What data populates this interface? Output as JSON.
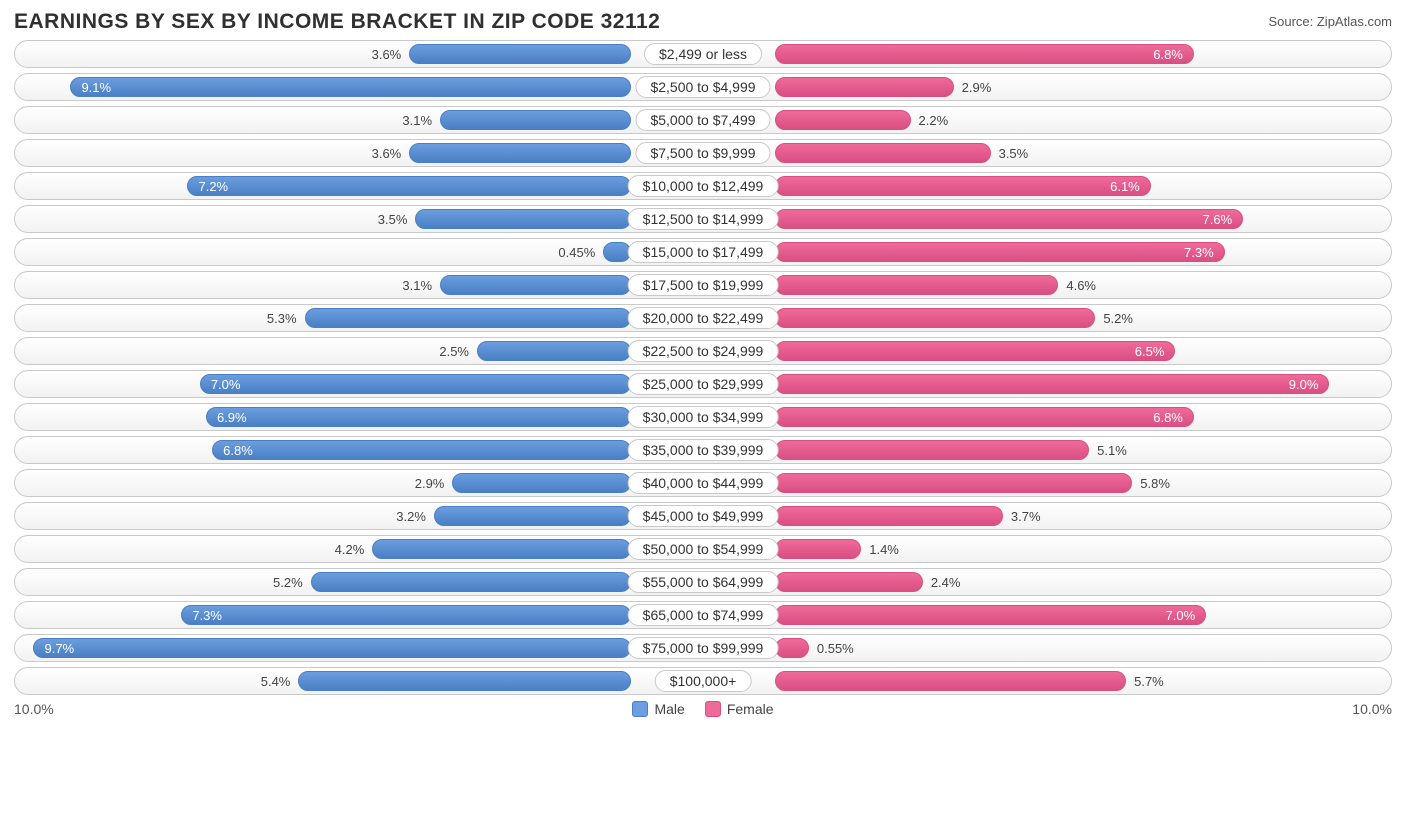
{
  "title": "EARNINGS BY SEX BY INCOME BRACKET IN ZIP CODE 32112",
  "source": "Source: ZipAtlas.com",
  "axis_max": 10.0,
  "axis_label_left": "10.0%",
  "axis_label_right": "10.0%",
  "colors": {
    "male_fill": "#6a9ede",
    "male_border": "#4a7fc5",
    "female_fill": "#ef6a99",
    "female_border": "#d94f82",
    "row_border": "#c9c9c9",
    "text_inside": "#ffffff",
    "text_outside": "#444444"
  },
  "legend": {
    "male": "Male",
    "female": "Female"
  },
  "label_inside_threshold": 6.0,
  "rows": [
    {
      "category": "$2,499 or less",
      "male": 3.6,
      "female": 6.8
    },
    {
      "category": "$2,500 to $4,999",
      "male": 9.1,
      "female": 2.9
    },
    {
      "category": "$5,000 to $7,499",
      "male": 3.1,
      "female": 2.2
    },
    {
      "category": "$7,500 to $9,999",
      "male": 3.6,
      "female": 3.5
    },
    {
      "category": "$10,000 to $12,499",
      "male": 7.2,
      "female": 6.1
    },
    {
      "category": "$12,500 to $14,999",
      "male": 3.5,
      "female": 7.6
    },
    {
      "category": "$15,000 to $17,499",
      "male": 0.45,
      "female": 7.3
    },
    {
      "category": "$17,500 to $19,999",
      "male": 3.1,
      "female": 4.6
    },
    {
      "category": "$20,000 to $22,499",
      "male": 5.3,
      "female": 5.2
    },
    {
      "category": "$22,500 to $24,999",
      "male": 2.5,
      "female": 6.5
    },
    {
      "category": "$25,000 to $29,999",
      "male": 7.0,
      "female": 9.0
    },
    {
      "category": "$30,000 to $34,999",
      "male": 6.9,
      "female": 6.8
    },
    {
      "category": "$35,000 to $39,999",
      "male": 6.8,
      "female": 5.1
    },
    {
      "category": "$40,000 to $44,999",
      "male": 2.9,
      "female": 5.8
    },
    {
      "category": "$45,000 to $49,999",
      "male": 3.2,
      "female": 3.7
    },
    {
      "category": "$50,000 to $54,999",
      "male": 4.2,
      "female": 1.4
    },
    {
      "category": "$55,000 to $64,999",
      "male": 5.2,
      "female": 2.4
    },
    {
      "category": "$65,000 to $74,999",
      "male": 7.3,
      "female": 7.0
    },
    {
      "category": "$75,000 to $99,999",
      "male": 9.7,
      "female": 0.55
    },
    {
      "category": "$100,000+",
      "male": 5.4,
      "female": 5.7
    }
  ]
}
